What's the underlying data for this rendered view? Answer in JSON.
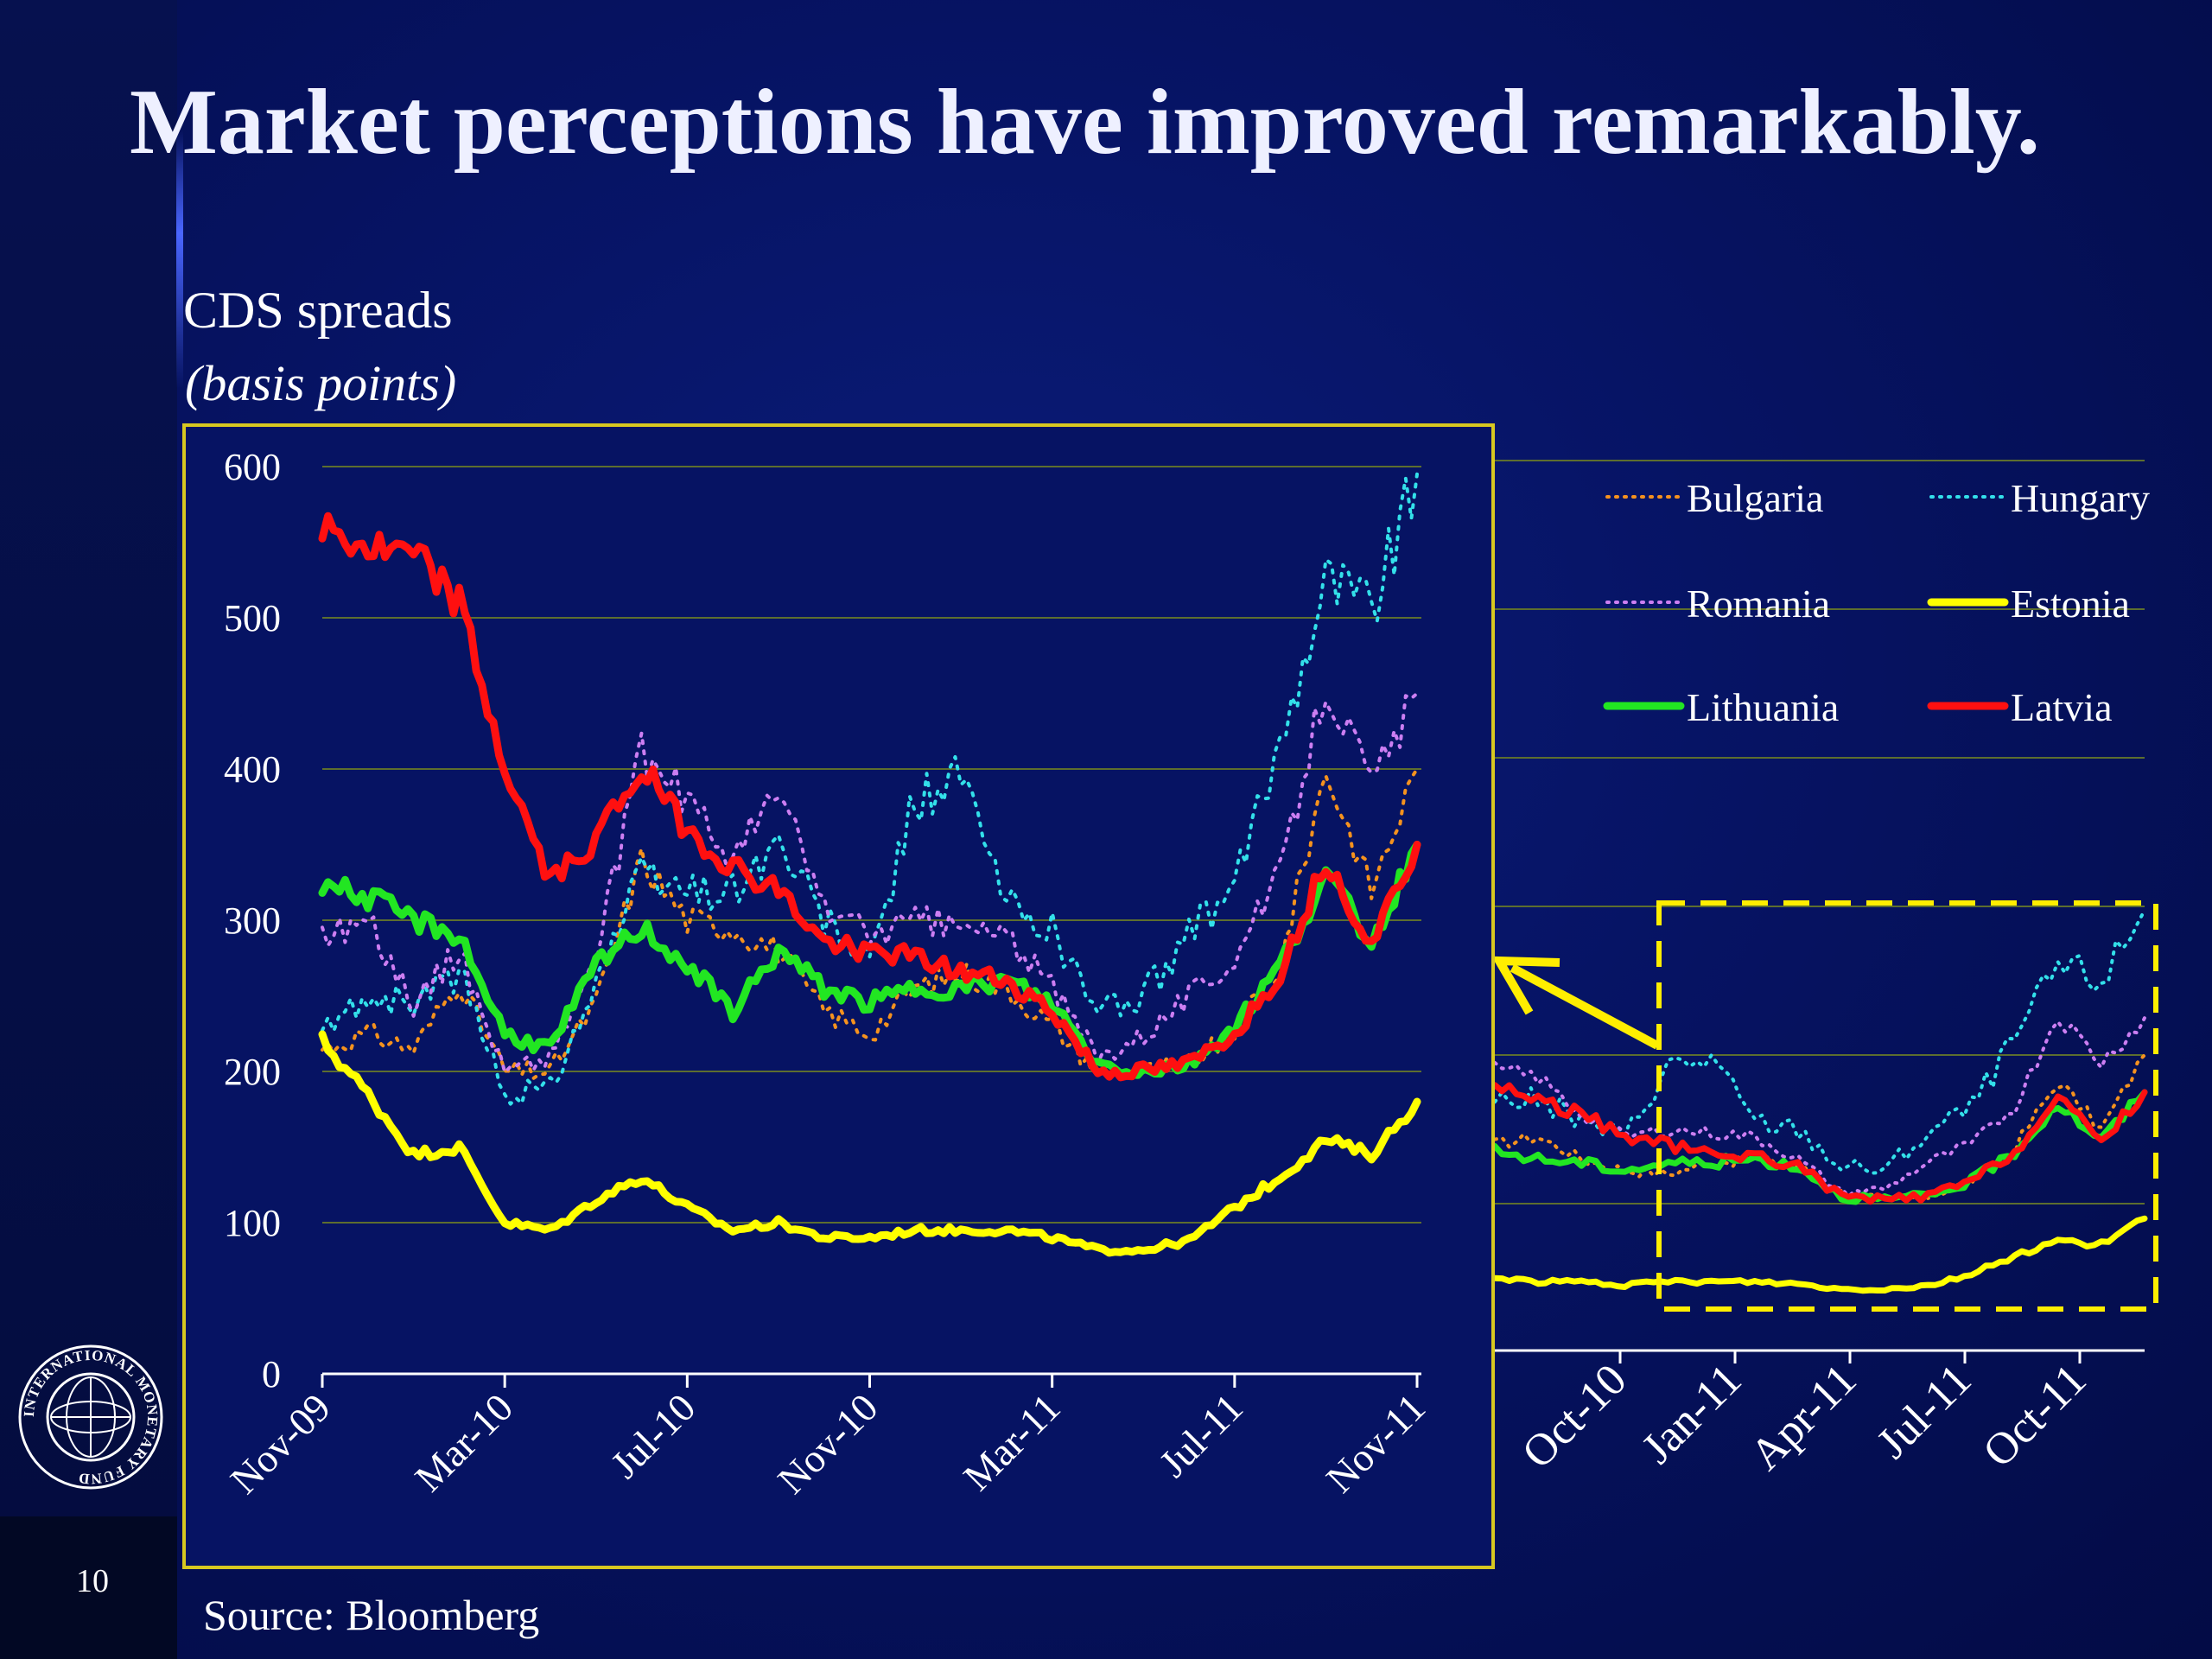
{
  "slide": {
    "title": "Market perceptions have improved remarkably.",
    "source": "Source: Bloomberg",
    "page_number": "10"
  },
  "logo": {
    "name": "imf-seal-icon",
    "text": "INTERNATIONAL MONETARY FUND"
  },
  "colors": {
    "background": "#061363",
    "inset_frame": "#d8c820",
    "gridline": "#5d6e2f",
    "bulgaria": "#f5921e",
    "hungary": "#33e0ea",
    "romania": "#cc7ef2",
    "estonia": "#ffff00",
    "lithuania": "#22e622",
    "latvia": "#ff1010"
  },
  "chart_data": [
    {
      "type": "line",
      "title": "CDS spreads",
      "subtitle": "(basis points)",
      "x_tick_labels": [
        "Nov-09",
        "Mar-10",
        "Jul-10",
        "Nov-10",
        "Mar-11",
        "Jul-11",
        "Nov-11"
      ],
      "y_tick_labels": [
        "0",
        "100",
        "200",
        "300",
        "400",
        "500",
        "600"
      ],
      "ylim": [
        0,
        600
      ],
      "grid": true,
      "x": [
        "Nov-09",
        "Dec-09",
        "Jan-10",
        "Feb-10",
        "Mar-10",
        "Apr-10",
        "May-10",
        "Jun-10",
        "Jul-10",
        "Aug-10",
        "Sep-10",
        "Oct-10",
        "Nov-10",
        "Dec-10",
        "Jan-11",
        "Feb-11",
        "Mar-11",
        "Apr-11",
        "May-11",
        "Jun-11",
        "Jul-11",
        "Aug-11",
        "Sep-11",
        "Oct-11",
        "Nov-11"
      ],
      "series": [
        {
          "name": "Bulgaria",
          "style": "dotted",
          "values": [
            215,
            225,
            215,
            260,
            200,
            200,
            245,
            340,
            300,
            295,
            280,
            240,
            225,
            255,
            265,
            255,
            230,
            200,
            200,
            205,
            225,
            270,
            400,
            320,
            400
          ]
        },
        {
          "name": "Hungary",
          "style": "dotted",
          "values": [
            225,
            250,
            245,
            265,
            185,
            190,
            260,
            330,
            320,
            320,
            350,
            300,
            270,
            380,
            395,
            310,
            295,
            240,
            250,
            290,
            320,
            420,
            530,
            510,
            595
          ]
        },
        {
          "name": "Romania",
          "style": "dotted",
          "values": [
            290,
            300,
            245,
            280,
            200,
            210,
            275,
            410,
            380,
            340,
            385,
            310,
            290,
            300,
            295,
            290,
            255,
            210,
            225,
            250,
            275,
            330,
            460,
            390,
            450
          ]
        },
        {
          "name": "Estonia",
          "style": "solid",
          "values": [
            220,
            185,
            145,
            150,
            100,
            95,
            115,
            130,
            110,
            95,
            100,
            90,
            90,
            95,
            95,
            95,
            90,
            82,
            82,
            88,
            110,
            130,
            155,
            145,
            180
          ]
        },
        {
          "name": "Lithuania",
          "style": "solid",
          "values": [
            325,
            315,
            300,
            290,
            225,
            215,
            270,
            295,
            270,
            240,
            280,
            255,
            245,
            255,
            255,
            260,
            245,
            205,
            200,
            205,
            230,
            270,
            330,
            285,
            350
          ]
        },
        {
          "name": "Latvia",
          "style": "solid",
          "values": [
            560,
            545,
            540,
            510,
            400,
            325,
            355,
            400,
            360,
            335,
            320,
            285,
            280,
            275,
            265,
            260,
            240,
            200,
            200,
            205,
            225,
            265,
            340,
            285,
            350
          ]
        }
      ]
    },
    {
      "type": "line",
      "x_tick_labels": [
        "Oct-10",
        "Jan-11",
        "Apr-11",
        "Jul-11",
        "Oct-11"
      ],
      "legend": {
        "position": "top-right",
        "entries": [
          {
            "name": "Bulgaria",
            "style": "dotted"
          },
          {
            "name": "Hungary",
            "style": "dotted"
          },
          {
            "name": "Romania",
            "style": "dotted"
          },
          {
            "name": "Estonia",
            "style": "solid"
          },
          {
            "name": "Lithuania",
            "style": "solid"
          },
          {
            "name": "Latvia",
            "style": "solid"
          }
        ]
      },
      "x": [
        "Aug-10",
        "Sep-10",
        "Oct-10",
        "Nov-10",
        "Dec-10",
        "Jan-11",
        "Feb-11",
        "Mar-11",
        "Apr-11",
        "May-11",
        "Jun-11",
        "Jul-11",
        "Aug-11",
        "Sep-11",
        "Oct-11",
        "Nov-11"
      ],
      "series": [
        {
          "name": "Bulgaria",
          "values": [
            280,
            290,
            260,
            245,
            240,
            255,
            260,
            250,
            215,
            205,
            210,
            230,
            275,
            365,
            300,
            400
          ]
        },
        {
          "name": "Hungary",
          "values": [
            340,
            340,
            310,
            290,
            385,
            395,
            310,
            300,
            250,
            245,
            295,
            330,
            420,
            520,
            500,
            595
          ]
        },
        {
          "name": "Romania",
          "values": [
            380,
            370,
            320,
            290,
            300,
            295,
            290,
            260,
            215,
            220,
            255,
            280,
            330,
            455,
            390,
            450
          ]
        },
        {
          "name": "Estonia",
          "values": [
            100,
            95,
            95,
            90,
            95,
            95,
            95,
            92,
            85,
            85,
            90,
            105,
            130,
            150,
            145,
            180
          ]
        },
        {
          "name": "Lithuania",
          "values": [
            270,
            260,
            255,
            245,
            255,
            255,
            260,
            250,
            210,
            205,
            210,
            230,
            270,
            335,
            285,
            350
          ]
        },
        {
          "name": "Latvia",
          "values": [
            360,
            340,
            320,
            290,
            280,
            265,
            265,
            250,
            210,
            205,
            210,
            230,
            270,
            340,
            285,
            350
          ]
        }
      ],
      "annotation": "highlight box around Nov-10 to Nov-11 with arrow pointing to inset"
    }
  ]
}
